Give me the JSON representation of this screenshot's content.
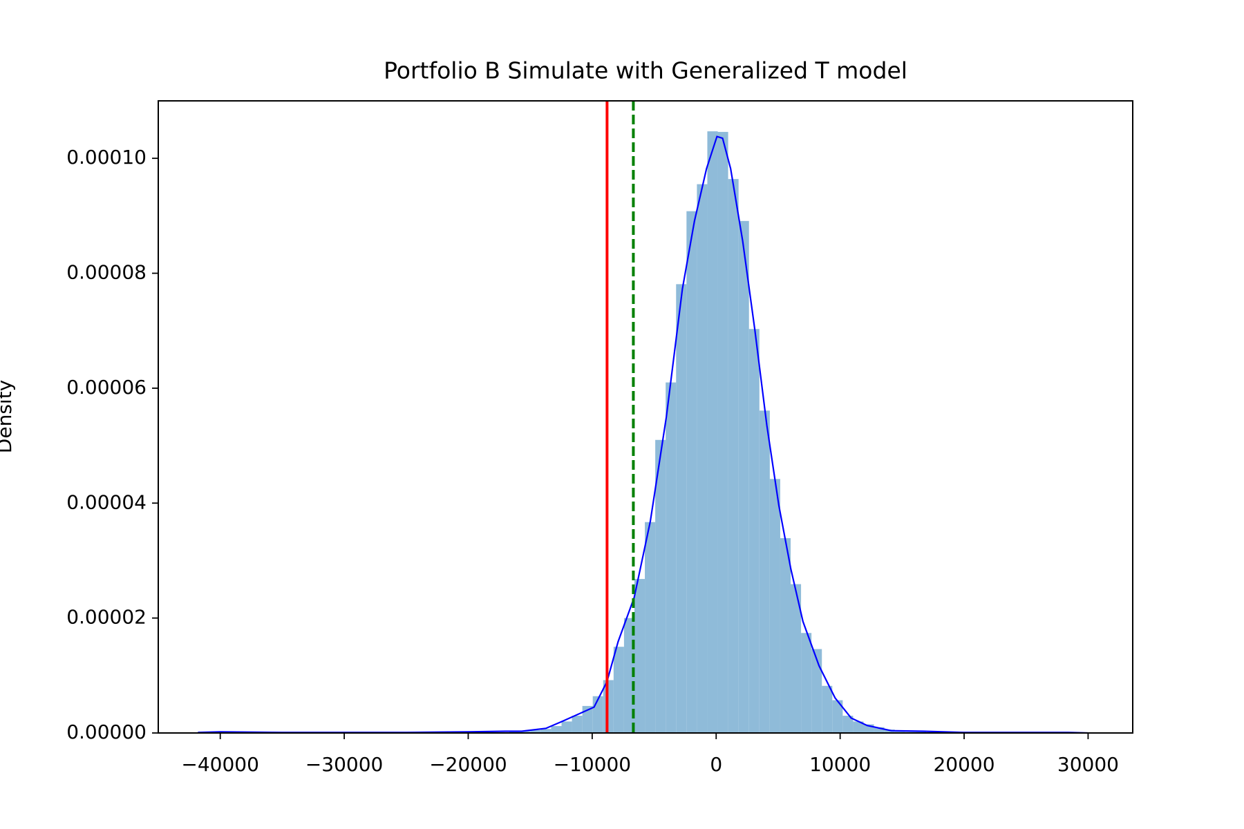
{
  "chart_data": {
    "type": "histogram",
    "title": "Portfolio B Simulate with Generalized T model",
    "ylabel": "Density",
    "bins": [
      -41873,
      -41033,
      -40193,
      -39353,
      -38513,
      -37673,
      -36833,
      -35993,
      -35153,
      -34313,
      -33473,
      -32633,
      -31793,
      -30953,
      -30113,
      -29273,
      -28433,
      -27593,
      -26753,
      -25913,
      -25073,
      -24233,
      -23393,
      -22553,
      -21713,
      -20873,
      -20033,
      -19193,
      -18353,
      -17513,
      -16673,
      -15833,
      -14993,
      -14153,
      -13313,
      -12473,
      -11633,
      -10793,
      -9953,
      -9113,
      -8273,
      -7433,
      -6593,
      -5753,
      -4913,
      -4073,
      -3233,
      -2393,
      -1553,
      -713,
      127,
      967,
      1807,
      2647,
      3487,
      4327,
      5167,
      6007,
      6847,
      7687,
      8527,
      9367,
      10207,
      11047,
      11887,
      12727,
      13567,
      14407,
      15247,
      16087,
      16927,
      17767,
      18607,
      19447,
      20287,
      21127,
      21967,
      22807,
      23647,
      24487,
      25327,
      26167,
      27007,
      27847,
      28687,
      29527,
      30367
    ],
    "values": [
      1e-07,
      0,
      0,
      0,
      0,
      0,
      0,
      0,
      0,
      0,
      0,
      0,
      0,
      0,
      0,
      0,
      0,
      0,
      0,
      0,
      0,
      0,
      0,
      0,
      0,
      0,
      0,
      0,
      0,
      1e-07,
      2e-07,
      3e-07,
      5e-07,
      7e-07,
      1.2e-06,
      2e-06,
      3e-06,
      4.7e-06,
      6.4e-06,
      9.2e-06,
      1.5e-05,
      2e-05,
      2.68e-05,
      3.67e-05,
      5.1e-05,
      6.1e-05,
      7.81e-05,
      9.08e-05,
      9.55e-05,
      0.0001047,
      0.0001046,
      9.64e-05,
      8.91e-05,
      7.03e-05,
      5.61e-05,
      4.42e-05,
      3.39e-05,
      2.59e-05,
      1.74e-05,
      1.46e-05,
      8.2e-06,
      5.7e-06,
      3e-06,
      2e-06,
      1.5e-06,
      1e-06,
      6e-07,
      4e-07,
      2e-07,
      2e-07,
      1e-07,
      0,
      0,
      0,
      0,
      0,
      0,
      0,
      0,
      0,
      0,
      0,
      0,
      0,
      0,
      1e-07
    ],
    "color": "#8fbbd9",
    "line": {
      "color": "#0000ff",
      "x": [
        -41800,
        -40000,
        -35000,
        -30000,
        -25000,
        -20000,
        -17000,
        -15680,
        -13740,
        -12440,
        -9850,
        -8814,
        -7907,
        -6610,
        -5314,
        -4018,
        -2722,
        -1750,
        -778,
        65,
        518,
        1167,
        2139,
        3111,
        4083,
        5055,
        6027,
        7000,
        8296,
        9592,
        10888,
        12184,
        14128,
        16720,
        19960,
        26440,
        28400,
        30000
      ],
      "y": [
        1e-07,
        2e-07,
        1e-07,
        1e-07,
        1e-07,
        2e-07,
        3e-07,
        3e-07,
        8e-07,
        2e-06,
        4.5e-06,
        8.9e-06,
        1.59e-05,
        2.36e-05,
        3.68e-05,
        5.5e-05,
        7.73e-05,
        8.91e-05,
        9.82e-05,
        0.0001038,
        0.0001035,
        9.82e-05,
        8.56e-05,
        7.03e-05,
        5.36e-05,
        3.96e-05,
        2.85e-05,
        1.94e-05,
        1.17e-05,
        6.1e-06,
        2.6e-06,
        1.3e-06,
        4e-07,
        3e-07,
        1e-07,
        1e-07,
        1e-07,
        0
      ]
    },
    "vlines": [
      {
        "x": -8800,
        "color": "#ff0000",
        "style": "solid"
      },
      {
        "x": -6680,
        "color": "#008000",
        "style": "dashed"
      }
    ],
    "xlim": [
      -45000,
      33600
    ],
    "ylim": [
      0,
      0.00011
    ],
    "xticks": [
      {
        "value": -40000,
        "label": "−40000"
      },
      {
        "value": -30000,
        "label": "−30000"
      },
      {
        "value": -20000,
        "label": "−20000"
      },
      {
        "value": -10000,
        "label": "−10000"
      },
      0,
      10000,
      20000,
      30000
    ],
    "yticks": [
      {
        "value": 0,
        "label": "0.00000"
      },
      {
        "value": 2e-05,
        "label": "0.00002"
      },
      {
        "value": 4e-05,
        "label": "0.00004"
      },
      {
        "value": 6e-05,
        "label": "0.00006"
      },
      {
        "value": 8e-05,
        "label": "0.00008"
      },
      {
        "value": 0.0001,
        "label": "0.00010"
      }
    ]
  }
}
